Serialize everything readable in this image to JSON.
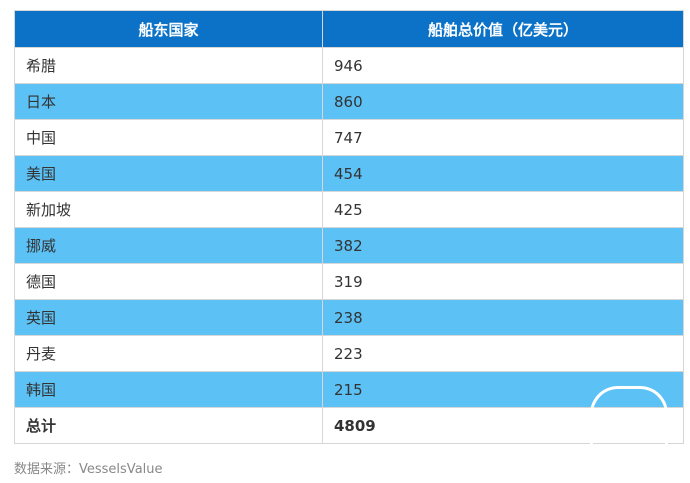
{
  "chart_data": {
    "type": "table",
    "columns": [
      "船东国家",
      "船舶总价值（亿美元）"
    ],
    "rows": [
      {
        "country": "希腊",
        "value": 946
      },
      {
        "country": "日本",
        "value": 860
      },
      {
        "country": "中国",
        "value": 747
      },
      {
        "country": "美国",
        "value": 454
      },
      {
        "country": "新加坡",
        "value": 425
      },
      {
        "country": "挪威",
        "value": 382
      },
      {
        "country": "德国",
        "value": 319
      },
      {
        "country": "英国",
        "value": 238
      },
      {
        "country": "丹麦",
        "value": 223
      },
      {
        "country": "韩国",
        "value": 215
      }
    ],
    "total": {
      "label": "总计",
      "value": 4809
    }
  },
  "source": "数据来源：VesselsValue",
  "colors": {
    "header_bg": "#0b72c7",
    "row_alt_bg": "#5cc2f6",
    "row_bg": "#ffffff",
    "text": "#333333"
  }
}
